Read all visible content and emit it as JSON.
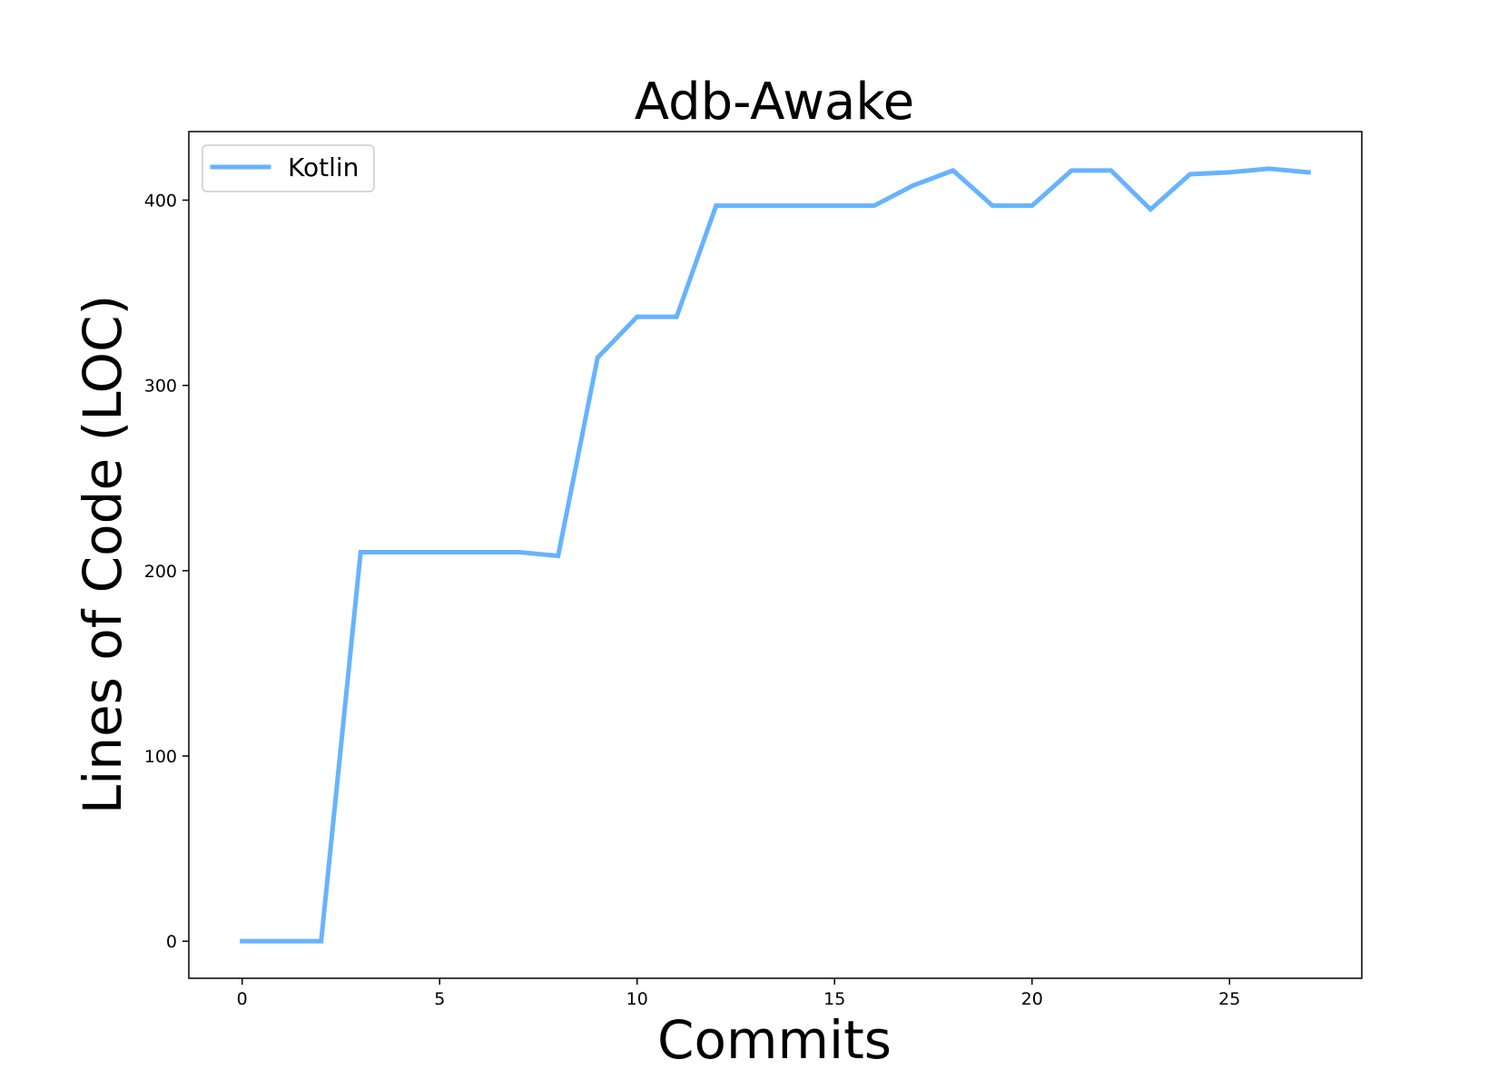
{
  "chart_data": {
    "type": "line",
    "title": "Adb-Awake",
    "xlabel": "Commits",
    "ylabel": "Lines of Code (LOC)",
    "xlim": [
      -1.35,
      28.35
    ],
    "ylim": [
      -20,
      437
    ],
    "xticks": [
      0,
      5,
      10,
      15,
      20,
      25
    ],
    "yticks": [
      0,
      100,
      200,
      300,
      400
    ],
    "grid": false,
    "legend": {
      "placement": "top-left"
    },
    "series": [
      {
        "name": "Kotlin",
        "color": "#66b3ff",
        "x": [
          0,
          1,
          2,
          3,
          4,
          5,
          6,
          7,
          8,
          9,
          10,
          11,
          12,
          13,
          14,
          15,
          16,
          17,
          18,
          19,
          20,
          21,
          22,
          23,
          24,
          25,
          26,
          27
        ],
        "y": [
          0,
          0,
          0,
          210,
          210,
          210,
          210,
          210,
          208,
          315,
          337,
          337,
          397,
          397,
          397,
          397,
          397,
          408,
          416,
          397,
          397,
          416,
          416,
          395,
          414,
          415,
          417,
          415
        ]
      }
    ]
  }
}
